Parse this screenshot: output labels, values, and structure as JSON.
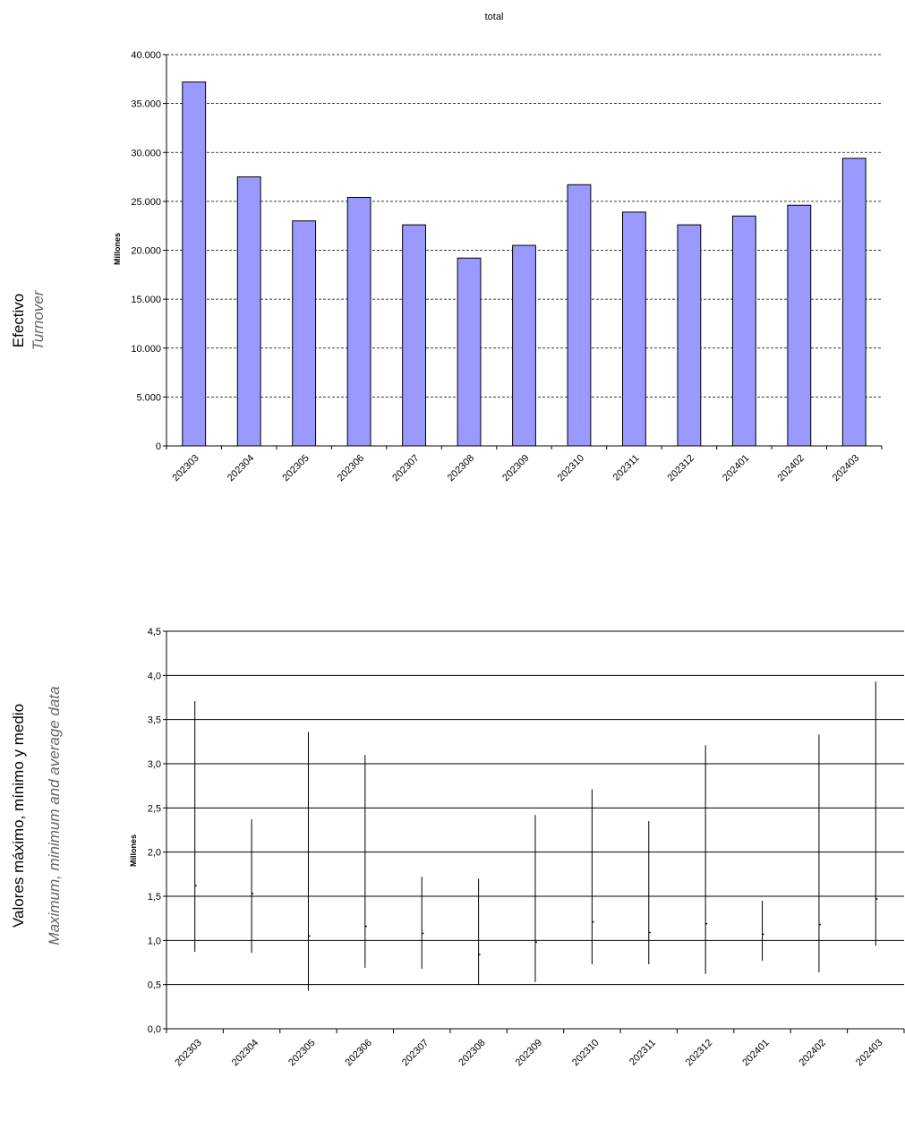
{
  "side_labels": {
    "chart1_es": "Efectivo",
    "chart1_en": "Turnover",
    "chart2_es": "Valores máximo, mínimo y medio",
    "chart2_en": "Maximum, minimum and average data"
  },
  "chart_data": [
    {
      "type": "bar",
      "title": "total",
      "ylabel": "Millones",
      "categories": [
        "202303",
        "202304",
        "202305",
        "202306",
        "202307",
        "202308",
        "202309",
        "202310",
        "202311",
        "202312",
        "202401",
        "202402",
        "202403"
      ],
      "values": [
        37200,
        27500,
        23000,
        25400,
        22600,
        19200,
        20500,
        26700,
        23900,
        22600,
        23500,
        24600,
        29400
      ],
      "ylim": [
        0,
        40000
      ],
      "yticks": [
        "0",
        "5.000",
        "10.000",
        "15.000",
        "20.000",
        "25.000",
        "30.000",
        "35.000",
        "40.000"
      ],
      "grid": true,
      "bar_color": "#9999ff"
    },
    {
      "type": "range",
      "ylabel": "Millones",
      "categories": [
        "202303",
        "202304",
        "202305",
        "202306",
        "202307",
        "202308",
        "202309",
        "202310",
        "202311",
        "202312",
        "202401",
        "202402",
        "202403"
      ],
      "max": [
        3.71,
        2.37,
        3.36,
        3.1,
        1.72,
        1.7,
        2.42,
        2.71,
        2.35,
        3.21,
        1.45,
        3.33,
        3.93
      ],
      "min": [
        0.87,
        0.86,
        0.43,
        0.69,
        0.68,
        0.5,
        0.53,
        0.73,
        0.73,
        0.62,
        0.77,
        0.64,
        0.94
      ],
      "avg": [
        1.62,
        1.53,
        1.05,
        1.16,
        1.08,
        0.84,
        0.98,
        1.21,
        1.09,
        1.19,
        1.07,
        1.18,
        1.47
      ],
      "ylim": [
        0,
        4.5
      ],
      "yticks": [
        "0,0",
        "0,5",
        "1,0",
        "1,5",
        "2,0",
        "2,5",
        "3,0",
        "3,5",
        "4,0",
        "4,5"
      ],
      "grid": true
    }
  ]
}
